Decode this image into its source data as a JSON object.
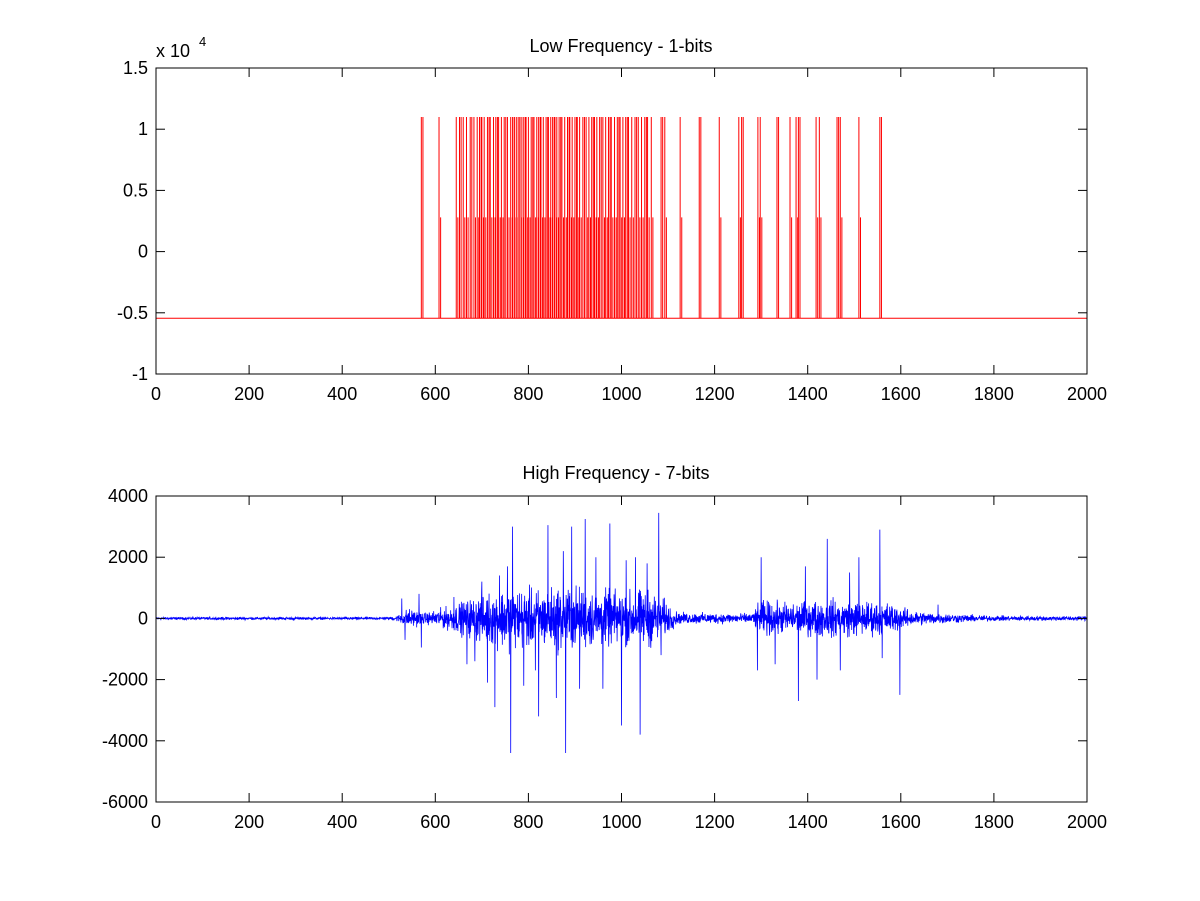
{
  "figure": {
    "background": "#ffffff"
  },
  "chart_data": [
    {
      "type": "line",
      "title": "Low Frequency - 1-bits",
      "xlabel": "",
      "ylabel": "",
      "xlim": [
        0,
        2000
      ],
      "ylim": [
        -1,
        1.5
      ],
      "y_exponent_label": "x 10",
      "y_exponent_power": "4",
      "xticks": [
        0,
        200,
        400,
        600,
        800,
        1000,
        1200,
        1400,
        1600,
        1800,
        2000
      ],
      "xtick_labels": [
        "0",
        "200",
        "400",
        "600",
        "800",
        "1000",
        "1200",
        "1400",
        "1600",
        "1800",
        "2000"
      ],
      "yticks": [
        -1,
        -0.5,
        0,
        0.5,
        1,
        1.5
      ],
      "ytick_labels": [
        "-1",
        "-0.5",
        "0",
        "0.5",
        "1",
        "1.5"
      ],
      "grid": false,
      "legend": "none",
      "series": [
        {
          "color": "#ff0000",
          "baseline": -0.545,
          "pulse_top": 1.1,
          "pulse_mid": 0.28,
          "pulse_x": [
            570,
            608,
            645,
            652,
            660,
            667,
            675,
            683,
            690,
            695,
            700,
            705,
            712,
            718,
            725,
            730,
            736,
            742,
            748,
            755,
            762,
            766,
            770,
            774,
            778,
            782,
            786,
            790,
            795,
            800,
            806,
            812,
            818,
            822,
            827,
            832,
            838,
            843,
            848,
            852,
            857,
            861,
            866,
            872,
            878,
            884,
            889,
            894,
            900,
            905,
            910,
            917,
            924,
            930,
            936,
            942,
            947,
            953,
            960,
            966,
            972,
            978,
            985,
            991,
            997,
            1003,
            1009,
            1015,
            1022,
            1029,
            1036,
            1043,
            1050,
            1056,
            1064,
            1085,
            1093,
            1126,
            1167,
            1210,
            1252,
            1258,
            1293,
            1298,
            1334,
            1362,
            1375,
            1380,
            1418,
            1425,
            1463,
            1470,
            1510,
            1555
          ]
        }
      ]
    },
    {
      "type": "line",
      "title": "High Frequency - 7-bits",
      "xlabel": "",
      "ylabel": "",
      "xlim": [
        0,
        2000
      ],
      "ylim": [
        -6000,
        4000
      ],
      "xticks": [
        0,
        200,
        400,
        600,
        800,
        1000,
        1200,
        1400,
        1600,
        1800,
        2000
      ],
      "xtick_labels": [
        "0",
        "200",
        "400",
        "600",
        "800",
        "1000",
        "1200",
        "1400",
        "1600",
        "1800",
        "2000"
      ],
      "yticks": [
        -6000,
        -4000,
        -2000,
        0,
        2000,
        4000
      ],
      "ytick_labels": [
        "-6000",
        "-4000",
        "-2000",
        "0",
        "2000",
        "4000"
      ],
      "grid": false,
      "legend": "none",
      "series": [
        {
          "color": "#0000ff",
          "envelope": [
            {
              "x": 0,
              "amp": 60
            },
            {
              "x": 500,
              "amp": 60
            },
            {
              "x": 520,
              "amp": 150
            },
            {
              "x": 540,
              "amp": 450
            },
            {
              "x": 580,
              "amp": 250
            },
            {
              "x": 640,
              "amp": 600
            },
            {
              "x": 700,
              "amp": 1100
            },
            {
              "x": 760,
              "amp": 1400
            },
            {
              "x": 820,
              "amp": 1300
            },
            {
              "x": 880,
              "amp": 1500
            },
            {
              "x": 940,
              "amp": 1300
            },
            {
              "x": 1000,
              "amp": 1200
            },
            {
              "x": 1060,
              "amp": 1300
            },
            {
              "x": 1090,
              "amp": 900
            },
            {
              "x": 1120,
              "amp": 260
            },
            {
              "x": 1280,
              "amp": 220
            },
            {
              "x": 1300,
              "amp": 800
            },
            {
              "x": 1360,
              "amp": 700
            },
            {
              "x": 1440,
              "amp": 850
            },
            {
              "x": 1520,
              "amp": 800
            },
            {
              "x": 1580,
              "amp": 700
            },
            {
              "x": 1620,
              "amp": 350
            },
            {
              "x": 1700,
              "amp": 220
            },
            {
              "x": 1800,
              "amp": 120
            },
            {
              "x": 2000,
              "amp": 100
            }
          ],
          "spikes": [
            {
              "x": 528,
              "y": 650
            },
            {
              "x": 535,
              "y": -700
            },
            {
              "x": 565,
              "y": 800
            },
            {
              "x": 570,
              "y": -950
            },
            {
              "x": 640,
              "y": 700
            },
            {
              "x": 668,
              "y": -1500
            },
            {
              "x": 685,
              "y": -1400
            },
            {
              "x": 700,
              "y": 1200
            },
            {
              "x": 712,
              "y": -2100
            },
            {
              "x": 728,
              "y": -2900
            },
            {
              "x": 738,
              "y": 1400
            },
            {
              "x": 755,
              "y": 1700
            },
            {
              "x": 762,
              "y": -4400
            },
            {
              "x": 766,
              "y": 3000
            },
            {
              "x": 790,
              "y": -2200
            },
            {
              "x": 815,
              "y": -1700
            },
            {
              "x": 822,
              "y": -3200
            },
            {
              "x": 842,
              "y": 3050
            },
            {
              "x": 860,
              "y": -2600
            },
            {
              "x": 875,
              "y": 2200
            },
            {
              "x": 880,
              "y": -4400
            },
            {
              "x": 893,
              "y": 3000
            },
            {
              "x": 910,
              "y": -2300
            },
            {
              "x": 922,
              "y": 3250
            },
            {
              "x": 945,
              "y": 2000
            },
            {
              "x": 960,
              "y": -2300
            },
            {
              "x": 975,
              "y": 3100
            },
            {
              "x": 1000,
              "y": -3500
            },
            {
              "x": 1010,
              "y": 1900
            },
            {
              "x": 1030,
              "y": 2000
            },
            {
              "x": 1040,
              "y": -3800
            },
            {
              "x": 1055,
              "y": 1800
            },
            {
              "x": 1080,
              "y": 3450
            },
            {
              "x": 1085,
              "y": -1200
            },
            {
              "x": 1292,
              "y": -1700
            },
            {
              "x": 1300,
              "y": 2000
            },
            {
              "x": 1330,
              "y": -1500
            },
            {
              "x": 1380,
              "y": -2700
            },
            {
              "x": 1395,
              "y": 1700
            },
            {
              "x": 1420,
              "y": -2000
            },
            {
              "x": 1442,
              "y": 2600
            },
            {
              "x": 1470,
              "y": -1700
            },
            {
              "x": 1490,
              "y": 1500
            },
            {
              "x": 1510,
              "y": 2000
            },
            {
              "x": 1555,
              "y": 2900
            },
            {
              "x": 1560,
              "y": -1300
            },
            {
              "x": 1598,
              "y": -2500
            },
            {
              "x": 1680,
              "y": 450
            }
          ]
        }
      ]
    }
  ]
}
